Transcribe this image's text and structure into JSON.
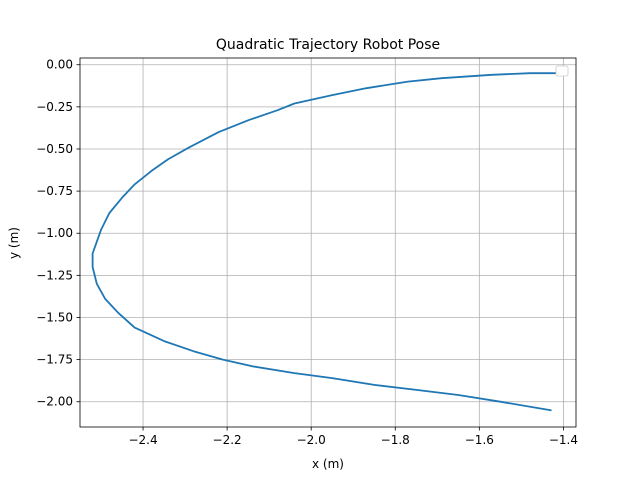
{
  "chart_data": {
    "type": "line",
    "title": "Quadratic Trajectory Robot Pose",
    "xlabel": "x (m)",
    "ylabel": "y (m)",
    "xlim": [
      -2.55,
      -1.37
    ],
    "ylim": [
      -2.15,
      0.04
    ],
    "xticks": [
      -2.4,
      -2.2,
      -2.0,
      -1.8,
      -1.6,
      -1.4
    ],
    "xtick_labels": [
      "−2.4",
      "−2.2",
      "−2.0",
      "−1.8",
      "−1.6",
      "−1.4"
    ],
    "yticks": [
      0.0,
      -0.25,
      -0.5,
      -0.75,
      -1.0,
      -1.25,
      -1.5,
      -1.75,
      -2.0
    ],
    "ytick_labels": [
      "0.00",
      "−0.25",
      "−0.50",
      "−0.75",
      "−1.00",
      "−1.25",
      "−1.50",
      "−1.75",
      "−2.00"
    ],
    "grid": true,
    "legend": "top-right, empty",
    "series": [
      {
        "color": "#1f77b4",
        "x": [
          -1.4,
          -1.48,
          -1.57,
          -1.69,
          -1.77,
          -1.87,
          -1.95,
          -2.04,
          -2.08,
          -2.15,
          -2.22,
          -2.29,
          -2.34,
          -2.38,
          -2.42,
          -2.45,
          -2.48,
          -2.5,
          -2.51,
          -2.52,
          -2.52,
          -2.51,
          -2.49,
          -2.46,
          -2.42,
          -2.35,
          -2.28,
          -2.21,
          -2.14,
          -2.04,
          -1.95,
          -1.85,
          -1.75,
          -1.65,
          -1.55,
          -1.43
        ],
        "y": [
          -0.05,
          -0.05,
          -0.06,
          -0.08,
          -0.1,
          -0.14,
          -0.18,
          -0.23,
          -0.27,
          -0.33,
          -0.4,
          -0.49,
          -0.56,
          -0.63,
          -0.71,
          -0.79,
          -0.88,
          -0.98,
          -1.05,
          -1.12,
          -1.2,
          -1.3,
          -1.39,
          -1.47,
          -1.56,
          -1.64,
          -1.7,
          -1.75,
          -1.79,
          -1.83,
          -1.86,
          -1.9,
          -1.93,
          -1.96,
          -2.0,
          -2.05
        ]
      }
    ]
  }
}
